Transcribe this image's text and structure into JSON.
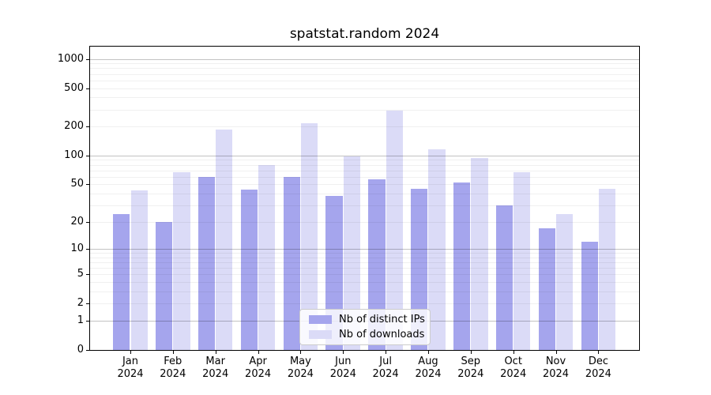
{
  "title": "spatstat.random 2024",
  "chart_data": {
    "type": "bar",
    "title": "spatstat.random 2024",
    "categories": [
      "Jan",
      "Feb",
      "Mar",
      "Apr",
      "May",
      "Jun",
      "Jul",
      "Aug",
      "Sep",
      "Oct",
      "Nov",
      "Dec"
    ],
    "x_tick_second_line": "2024",
    "series": [
      {
        "name": "Nb of distinct IPs",
        "color": "#a5a5ed",
        "values": [
          24,
          20,
          60,
          44,
          60,
          38,
          57,
          45,
          52,
          30,
          17,
          12
        ]
      },
      {
        "name": "Nb of downloads",
        "color": "#dbdbf7",
        "values": [
          43,
          67,
          185,
          80,
          215,
          98,
          295,
          117,
          95,
          67,
          24,
          45
        ]
      }
    ],
    "y_ticks": [
      0,
      1,
      2,
      5,
      10,
      20,
      50,
      100,
      200,
      500,
      1000
    ],
    "y_scale": "log1p",
    "ylim": [
      0,
      1390
    ],
    "xlabel": "",
    "ylabel": "",
    "grid": true,
    "legend_position": "lower center"
  },
  "colors": {
    "distinct_ips": "#a5a5ed",
    "downloads": "#dbdbf7",
    "major_grid": "#c3c3c3",
    "minor_grid": "#ececec",
    "spine": "#000000"
  }
}
